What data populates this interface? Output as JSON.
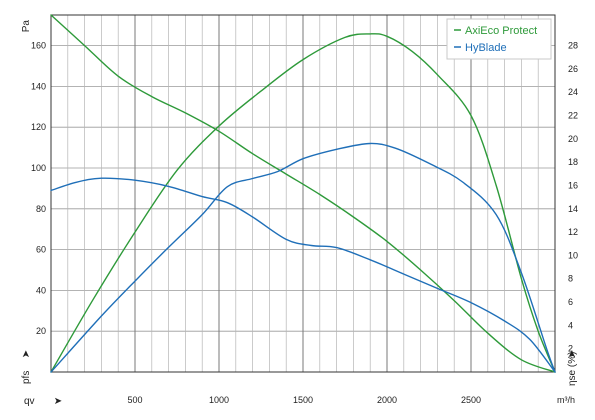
{
  "chart_data": {
    "type": "line",
    "left_axis": {
      "unit": "Pa",
      "symbol": "pfs",
      "ylim": [
        0,
        175
      ],
      "ticks": [
        20,
        40,
        60,
        80,
        100,
        120,
        140,
        160
      ]
    },
    "right_axis": {
      "symbol": "ηse (%)",
      "ylim": [
        0,
        30.625
      ],
      "ticks": [
        2,
        4,
        6,
        8,
        10,
        12,
        14,
        16,
        18,
        20,
        22,
        24,
        26,
        28
      ]
    },
    "x_axis": {
      "unit": "m³/h",
      "symbol": "qv",
      "xlim": [
        0,
        3000
      ],
      "ticks": [
        500,
        1000,
        1500,
        2000,
        2500
      ]
    },
    "grid": true,
    "legend": {
      "placement": "top-right",
      "entries": [
        {
          "label": "AxiEco Protect",
          "color": "#2e9a3a"
        },
        {
          "label": "HyBlade",
          "color": "#1f6fb8"
        }
      ]
    },
    "series": [
      {
        "name": "AxiEco Protect",
        "kind": "pressure",
        "axis": "left",
        "color": "#2e9a3a",
        "x": [
          0,
          200,
          400,
          600,
          800,
          1000,
          1200,
          1400,
          1600,
          1800,
          2000,
          2200,
          2400,
          2600,
          2800,
          3000
        ],
        "y": [
          175,
          160,
          145,
          135,
          127,
          118,
          107,
          97,
          87,
          76,
          64,
          50,
          35,
          19,
          6,
          0
        ]
      },
      {
        "name": "AxiEco Protect",
        "kind": "efficiency",
        "axis": "right",
        "color": "#2e9a3a",
        "x": [
          0,
          250,
          500,
          750,
          1000,
          1250,
          1500,
          1750,
          1900,
          2000,
          2150,
          2300,
          2500,
          2650,
          2800,
          2900,
          3000
        ],
        "y": [
          0,
          6.2,
          12.0,
          17.3,
          21.1,
          24.1,
          26.8,
          28.7,
          29.0,
          28.8,
          27.5,
          25.5,
          22.0,
          16.0,
          8.0,
          3.5,
          0
        ]
      },
      {
        "name": "HyBlade",
        "kind": "pressure",
        "axis": "left",
        "color": "#1f6fb8",
        "x": [
          0,
          150,
          300,
          500,
          700,
          900,
          1050,
          1200,
          1400,
          1550,
          1700,
          1900,
          2100,
          2300,
          2500,
          2700,
          2850,
          3000
        ],
        "y": [
          89,
          93,
          95,
          94,
          91,
          86,
          83,
          76,
          65,
          62,
          61,
          55,
          48,
          41,
          34,
          25,
          16,
          0
        ]
      },
      {
        "name": "HyBlade",
        "kind": "efficiency",
        "axis": "right",
        "color": "#1f6fb8",
        "x": [
          0,
          300,
          500,
          700,
          900,
          1050,
          1200,
          1350,
          1500,
          1700,
          1900,
          2050,
          2250,
          2450,
          2650,
          2800,
          2950,
          3000
        ],
        "y": [
          0,
          4.8,
          7.8,
          10.7,
          13.5,
          15.9,
          16.6,
          17.2,
          18.3,
          19.1,
          19.6,
          19.2,
          17.9,
          16.3,
          13.5,
          8.5,
          2.0,
          0
        ]
      }
    ]
  }
}
